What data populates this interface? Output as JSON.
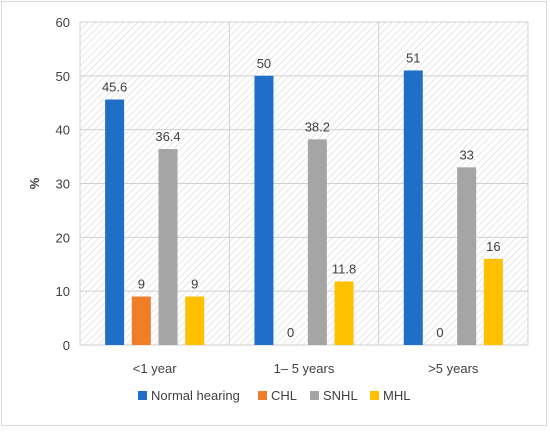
{
  "chart_data": {
    "type": "bar",
    "title": "",
    "xlabel": "",
    "ylabel": "%",
    "ylim": [
      0,
      60
    ],
    "yticks": [
      0,
      10,
      20,
      30,
      40,
      50,
      60
    ],
    "grid": true,
    "legend_position": "bottom",
    "categories": [
      "<1 year",
      "1– 5 years",
      ">5 years"
    ],
    "series": [
      {
        "name": "Normal hearing",
        "color": "#1f6fc8",
        "values": [
          45.6,
          50,
          51
        ],
        "labels": [
          "45.6",
          "50",
          "51"
        ]
      },
      {
        "name": "CHL",
        "color": "#f07d27",
        "values": [
          9,
          0,
          0
        ],
        "labels": [
          "9",
          "0",
          "0"
        ]
      },
      {
        "name": "SNHL",
        "color": "#a5a5a5",
        "values": [
          36.4,
          38.2,
          33
        ],
        "labels": [
          "36.4",
          "38.2",
          "33"
        ]
      },
      {
        "name": "MHL",
        "color": "#ffc000",
        "values": [
          9,
          11.8,
          16
        ],
        "labels": [
          "9",
          "11.8",
          "16"
        ]
      }
    ]
  }
}
